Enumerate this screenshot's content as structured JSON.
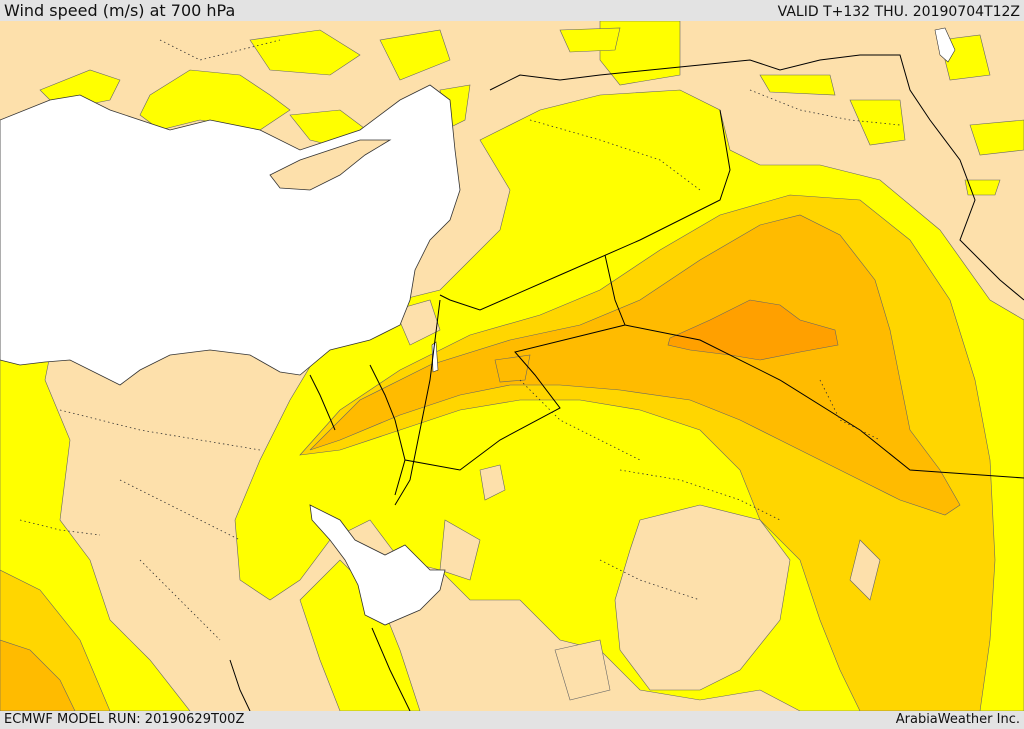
{
  "header": {
    "title": "Wind speed (m/s) at 700 hPa",
    "valid": "VALID T+132 THU. 20190704T12Z"
  },
  "footer": {
    "model_run": "ECMWF MODEL RUN: 20190629T00Z",
    "credit": "ArabiaWeather Inc."
  },
  "colors": {
    "land_calm": "#fde0ab",
    "sea": "#ffffff",
    "band_1": "#ffff00",
    "band_2": "#ffd600",
    "band_3": "#ffbb00",
    "band_4": "#ffa000",
    "border_line": "#000000",
    "contour_line": "#555555"
  }
}
